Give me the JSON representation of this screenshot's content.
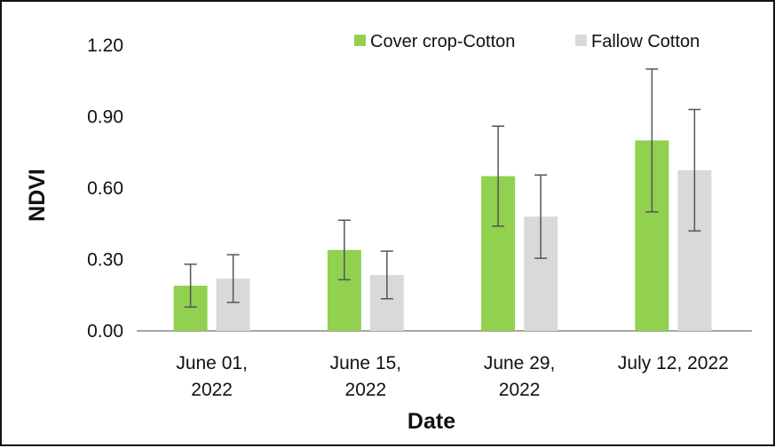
{
  "chart_data": {
    "type": "bar",
    "xlabel": "Date",
    "ylabel": "NDVI",
    "ylim": [
      0,
      1.2
    ],
    "yticks": [
      "0.00",
      "0.30",
      "0.60",
      "0.90",
      "1.20"
    ],
    "categories": [
      [
        "June 01,",
        "2022"
      ],
      [
        "June 15,",
        "2022"
      ],
      [
        "June 29,",
        "2022"
      ],
      [
        "July 12, 2022"
      ]
    ],
    "series": [
      {
        "name": "Cover crop-Cotton",
        "color": "#92d050",
        "values": [
          0.19,
          0.34,
          0.65,
          0.8
        ],
        "error": [
          0.09,
          0.125,
          0.21,
          0.3
        ]
      },
      {
        "name": "Fallow Cotton",
        "color": "#d9d9d9",
        "values": [
          0.22,
          0.235,
          0.48,
          0.675
        ],
        "error": [
          0.1,
          0.1,
          0.175,
          0.255
        ]
      }
    ],
    "legend_position": "top-right",
    "grid": false
  }
}
